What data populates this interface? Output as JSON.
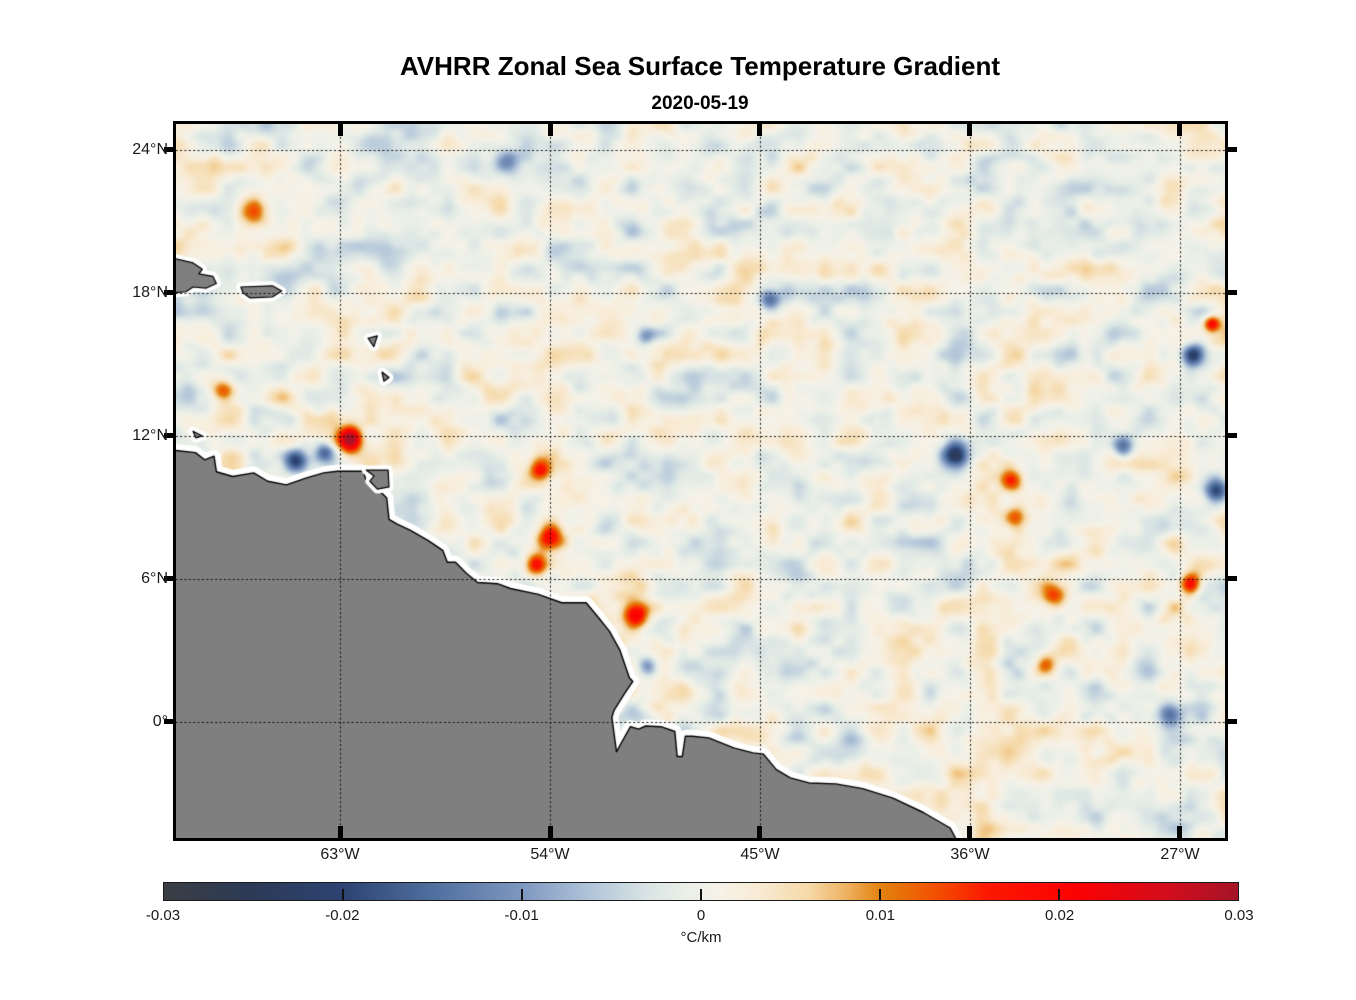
{
  "chart_data": {
    "type": "heatmap",
    "title": "AVHRR Zonal Sea Surface Temperature Gradient",
    "subtitle": "2020-05-19",
    "lon_range": [
      -70.03,
      -25.07
    ],
    "lat_range": [
      -4.87,
      25.09
    ],
    "grid": "dotted",
    "x_ticks": [
      {
        "value": -63,
        "label": "63°W"
      },
      {
        "value": -54,
        "label": "54°W"
      },
      {
        "value": -45,
        "label": "45°W"
      },
      {
        "value": -36,
        "label": "36°W"
      },
      {
        "value": -27,
        "label": "27°W"
      }
    ],
    "y_ticks": [
      {
        "value": 24,
        "label": "24°N"
      },
      {
        "value": 18,
        "label": "18°N"
      },
      {
        "value": 12,
        "label": "12°N"
      },
      {
        "value": 6,
        "label": "6°N"
      },
      {
        "value": 0,
        "label": "0°"
      }
    ],
    "colorbar": {
      "min": -0.03,
      "max": 0.03,
      "unit": "°C/km",
      "tick_labels": [
        {
          "value": -0.03,
          "label": "-0.03"
        },
        {
          "value": -0.02,
          "label": "-0.02"
        },
        {
          "value": -0.01,
          "label": "-0.01"
        },
        {
          "value": 0,
          "label": "0"
        },
        {
          "value": 0.01,
          "label": "0.01"
        },
        {
          "value": 0.02,
          "label": "0.02"
        },
        {
          "value": 0.03,
          "label": "0.03"
        }
      ],
      "bar_ticks": [
        -0.02,
        -0.01,
        0,
        0.01,
        0.02
      ],
      "stops": [
        [
          -0.03,
          "#3a3e44"
        ],
        [
          -0.025,
          "#2c3a57"
        ],
        [
          -0.02,
          "#2d4372"
        ],
        [
          -0.015,
          "#4f6f9f"
        ],
        [
          -0.01,
          "#7e97bf"
        ],
        [
          -0.006,
          "#b3c6da"
        ],
        [
          -0.003,
          "#d9e4e4"
        ],
        [
          -0.001,
          "#e9efe7"
        ],
        [
          0.001,
          "#f6f2e8"
        ],
        [
          0.003,
          "#f8ecd7"
        ],
        [
          0.006,
          "#f5d9a8"
        ],
        [
          0.008,
          "#efb466"
        ],
        [
          0.01,
          "#e2830f"
        ],
        [
          0.013,
          "#f25200"
        ],
        [
          0.016,
          "#fb1800"
        ],
        [
          0.021,
          "#fb0202"
        ],
        [
          0.026,
          "#d30d1c"
        ],
        [
          0.03,
          "#a51428"
        ]
      ]
    },
    "field": {
      "description": "Mottled zonal SST gradient field over the western tropical Atlantic, mostly within ±0.006 °C/km with localized stronger anomalies",
      "noise": {
        "seed": 11,
        "bias": 0.0003,
        "octaves": [
          {
            "cw": 27,
            "ch": 21,
            "amp": 0.0046
          },
          {
            "cw": 13,
            "ch": 11,
            "amp": 0.002
          },
          {
            "cw": 56,
            "ch": 44,
            "amp": 0.0022
          }
        ]
      },
      "features": [
        {
          "lon": -62.55,
          "lat": 11.85,
          "sigma": 0.5,
          "amp": 0.034
        },
        {
          "lon": -64.9,
          "lat": 10.95,
          "sigma": 0.5,
          "amp": -0.02
        },
        {
          "lon": -63.6,
          "lat": 11.3,
          "sigma": 0.4,
          "amp": -0.015
        },
        {
          "lon": -54.4,
          "lat": 10.6,
          "sigma": 0.45,
          "amp": 0.016
        },
        {
          "lon": -54.0,
          "lat": 7.8,
          "sigma": 0.55,
          "amp": 0.017
        },
        {
          "lon": -54.6,
          "lat": 6.6,
          "sigma": 0.45,
          "amp": 0.019
        },
        {
          "lon": -50.3,
          "lat": 4.4,
          "sigma": 0.5,
          "amp": 0.018
        },
        {
          "lon": -49.8,
          "lat": 2.3,
          "sigma": 0.45,
          "amp": -0.014
        },
        {
          "lon": -36.6,
          "lat": 11.2,
          "sigma": 0.55,
          "amp": -0.022
        },
        {
          "lon": -34.2,
          "lat": 10.1,
          "sigma": 0.5,
          "amp": 0.02
        },
        {
          "lon": -34.1,
          "lat": 8.6,
          "sigma": 0.5,
          "amp": 0.013
        },
        {
          "lon": -29.4,
          "lat": 11.6,
          "sigma": 0.45,
          "amp": -0.017
        },
        {
          "lon": -25.4,
          "lat": 9.7,
          "sigma": 0.5,
          "amp": -0.02
        },
        {
          "lon": -26.4,
          "lat": 15.4,
          "sigma": 0.45,
          "amp": -0.021
        },
        {
          "lon": -25.6,
          "lat": 16.7,
          "sigma": 0.33,
          "amp": 0.018
        },
        {
          "lon": -26.5,
          "lat": 5.8,
          "sigma": 0.45,
          "amp": 0.02
        },
        {
          "lon": -32.3,
          "lat": 5.3,
          "sigma": 0.5,
          "amp": 0.013
        },
        {
          "lon": -66.7,
          "lat": 21.4,
          "sigma": 0.6,
          "amp": 0.011
        },
        {
          "lon": -68.1,
          "lat": 13.9,
          "sigma": 0.5,
          "amp": 0.012
        },
        {
          "lon": -44.6,
          "lat": 17.7,
          "sigma": 0.45,
          "amp": -0.012
        },
        {
          "lon": -55.9,
          "lat": 23.5,
          "sigma": 0.5,
          "amp": -0.011
        },
        {
          "lon": -49.9,
          "lat": 16.2,
          "sigma": 0.4,
          "amp": -0.01
        },
        {
          "lon": -27.4,
          "lat": 0.3,
          "sigma": 0.5,
          "amp": -0.013
        },
        {
          "lon": -32.7,
          "lat": 2.4,
          "sigma": 0.45,
          "amp": 0.011
        }
      ]
    },
    "land": {
      "land_color": "#7f7f7f",
      "coast_color": "#000000",
      "nodata_halo_color": "#ffffff",
      "main_coast": [
        [
          -70.2,
          11.41
        ],
        [
          -69.2,
          11.3
        ],
        [
          -68.8,
          11.0
        ],
        [
          -68.4,
          11.15
        ],
        [
          -68.3,
          10.5
        ],
        [
          -67.6,
          10.3
        ],
        [
          -66.7,
          10.45
        ],
        [
          -66.1,
          10.1
        ],
        [
          -65.3,
          9.95
        ],
        [
          -64.4,
          10.25
        ],
        [
          -63.7,
          10.45
        ],
        [
          -63.1,
          10.52
        ],
        [
          -62.0,
          10.52
        ],
        [
          -61.9,
          10.18
        ],
        [
          -61.3,
          9.7
        ],
        [
          -61.0,
          9.4
        ],
        [
          -60.9,
          8.5
        ],
        [
          -60.55,
          8.3
        ],
        [
          -60.0,
          8.05
        ],
        [
          -59.2,
          7.6
        ],
        [
          -58.6,
          7.2
        ],
        [
          -58.4,
          6.7
        ],
        [
          -58.05,
          6.7
        ],
        [
          -57.6,
          6.25
        ],
        [
          -57.1,
          5.85
        ],
        [
          -56.25,
          5.8
        ],
        [
          -55.7,
          5.6
        ],
        [
          -54.5,
          5.35
        ],
        [
          -53.5,
          5.0
        ],
        [
          -52.45,
          5.0
        ],
        [
          -51.9,
          4.35
        ],
        [
          -51.45,
          3.8
        ],
        [
          -51.0,
          3.0
        ],
        [
          -50.6,
          1.85
        ],
        [
          -50.45,
          1.7
        ],
        [
          -50.8,
          1.2
        ],
        [
          -51.25,
          0.5
        ],
        [
          -51.35,
          0.2
        ],
        [
          -51.15,
          -1.25
        ],
        [
          -50.9,
          -0.8
        ],
        [
          -50.55,
          -0.2
        ],
        [
          -50.2,
          -0.3
        ],
        [
          -49.9,
          -0.17
        ],
        [
          -49.25,
          -0.2
        ],
        [
          -48.65,
          -0.4
        ],
        [
          -48.55,
          -1.45
        ],
        [
          -48.33,
          -1.45
        ],
        [
          -48.2,
          -0.6
        ],
        [
          -47.9,
          -0.6
        ],
        [
          -47.2,
          -0.67
        ],
        [
          -46.1,
          -1.1
        ],
        [
          -45.3,
          -1.3
        ],
        [
          -44.85,
          -1.35
        ],
        [
          -44.3,
          -2.0
        ],
        [
          -43.7,
          -2.35
        ],
        [
          -42.9,
          -2.56
        ],
        [
          -41.75,
          -2.6
        ],
        [
          -40.6,
          -2.8
        ],
        [
          -39.3,
          -3.2
        ],
        [
          -38.0,
          -3.8
        ],
        [
          -36.85,
          -4.45
        ],
        [
          -36.5,
          -5.1
        ]
      ],
      "main_close": [
        [
          -70.2,
          -5.1
        ]
      ],
      "islands": [
        [
          [
            -70.2,
            19.47
          ],
          [
            -69.3,
            19.26
          ],
          [
            -68.9,
            19.0
          ],
          [
            -69.05,
            18.8
          ],
          [
            -68.45,
            18.7
          ],
          [
            -68.3,
            18.4
          ],
          [
            -68.75,
            18.2
          ],
          [
            -69.3,
            18.25
          ],
          [
            -69.6,
            18.05
          ],
          [
            -70.2,
            18.0
          ]
        ],
        [
          [
            -67.25,
            18.25
          ],
          [
            -65.9,
            18.3
          ],
          [
            -65.5,
            18.08
          ],
          [
            -65.9,
            17.83
          ],
          [
            -66.85,
            17.79
          ],
          [
            -67.15,
            18.0
          ]
        ],
        [
          [
            -61.88,
            10.57
          ],
          [
            -60.94,
            10.57
          ],
          [
            -60.9,
            9.86
          ],
          [
            -61.4,
            9.77
          ],
          [
            -61.72,
            10.1
          ],
          [
            -61.54,
            10.32
          ]
        ],
        [
          [
            -61.8,
            16.1
          ],
          [
            -61.4,
            16.2
          ],
          [
            -61.55,
            15.75
          ]
        ],
        [
          [
            -61.2,
            14.68
          ],
          [
            -60.9,
            14.45
          ],
          [
            -61.12,
            14.3
          ]
        ],
        [
          [
            -69.3,
            12.2
          ],
          [
            -68.9,
            12.0
          ],
          [
            -69.18,
            11.92
          ]
        ]
      ]
    }
  }
}
